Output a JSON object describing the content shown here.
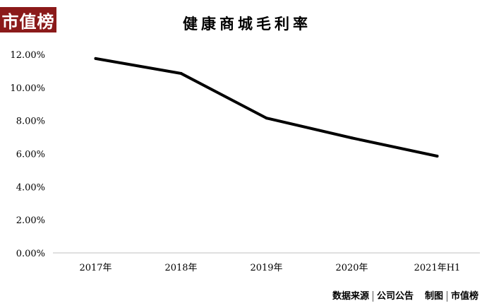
{
  "logo_text": "市值榜",
  "chart_data": {
    "type": "line",
    "title": "健康商城毛利率",
    "categories": [
      "2017年",
      "2018年",
      "2019年",
      "2020年",
      "2021年H1"
    ],
    "series": [
      {
        "values": [
          11.75,
          10.85,
          8.15,
          6.95,
          5.85
        ]
      }
    ],
    "ylim": [
      0,
      12
    ],
    "yticks": [
      0,
      2,
      4,
      6,
      8,
      10,
      12
    ],
    "ytick_labels": [
      "0.00%",
      "2.00%",
      "4.00%",
      "6.00%",
      "8.00%",
      "10.00%",
      "12.00%"
    ],
    "xlabel": "",
    "ylabel": "",
    "grid": false,
    "legend": "none",
    "line_color": "#000000"
  },
  "footer": {
    "source_label": "数据来源",
    "source_value": "公司公告",
    "maker_label": "制图",
    "maker_value": "市值榜"
  },
  "colors": {
    "brand": "#8b1a1a"
  }
}
